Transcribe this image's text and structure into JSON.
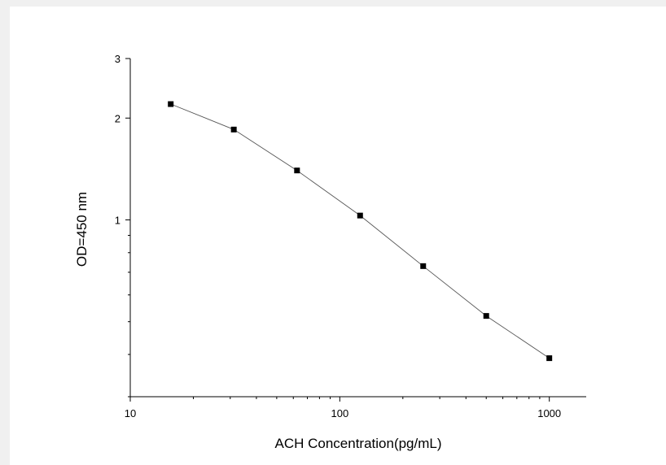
{
  "chart_data": {
    "type": "scatter",
    "xlabel": "ACH Concentration(pg/mL)",
    "ylabel": "OD=450 nm",
    "x_scale": "log",
    "y_scale": "log",
    "xlim": [
      10,
      1500
    ],
    "ylim": [
      0.3,
      3
    ],
    "x_ticks": [
      {
        "value": 10,
        "label": "10"
      },
      {
        "value": 100,
        "label": "100"
      },
      {
        "value": 1000,
        "label": "1000"
      }
    ],
    "y_ticks": [
      {
        "value": 1,
        "label": "1"
      },
      {
        "value": 2,
        "label": "2"
      },
      {
        "value": 3,
        "label": "3"
      }
    ],
    "grid": false,
    "marker": "square",
    "connected": true,
    "colors": {
      "marker": "#000000",
      "line": "#555555",
      "axis": "#000000"
    },
    "series": [
      {
        "x": [
          15.6,
          31.2,
          62.5,
          125,
          250,
          500,
          1000
        ],
        "y": [
          2.2,
          1.85,
          1.4,
          1.03,
          0.73,
          0.52,
          0.39
        ]
      }
    ]
  }
}
